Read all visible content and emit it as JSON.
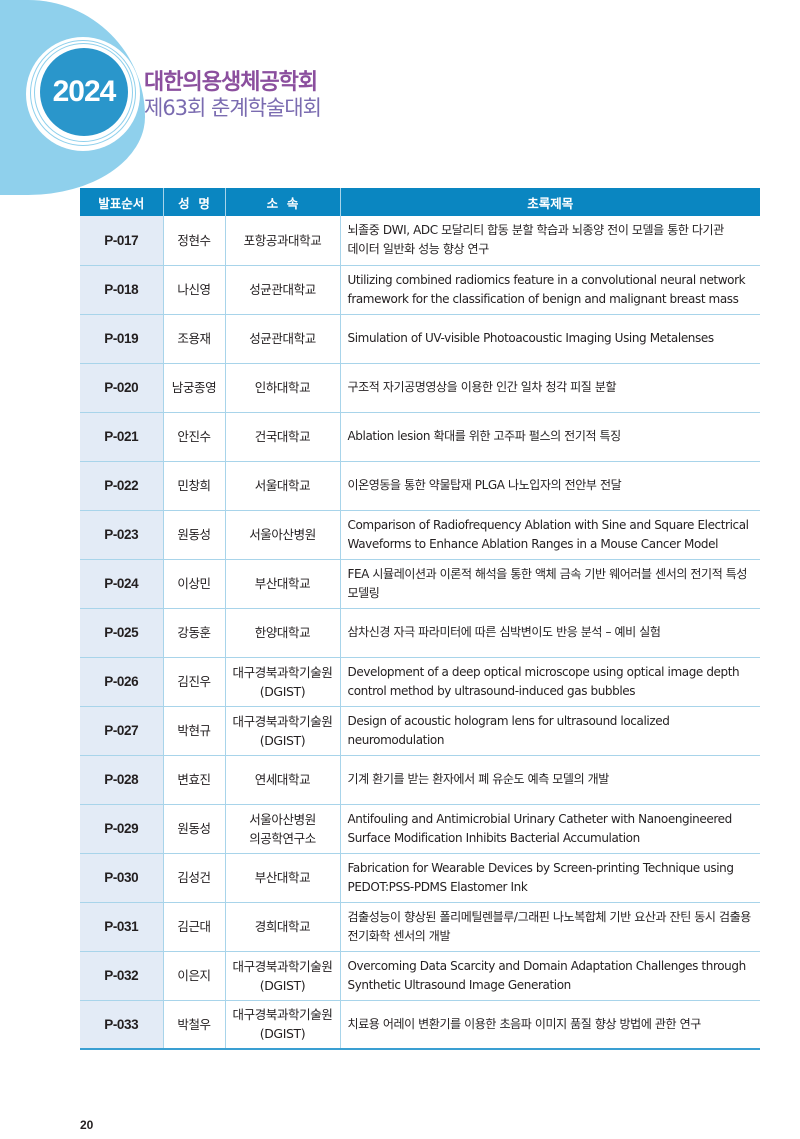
{
  "header": {
    "year": "2024",
    "society": "대한의용생체공학회",
    "event": "제63회 춘계학술대회"
  },
  "colors": {
    "header_bg": "#0a86c1",
    "accent": "#2a96cb",
    "first_col_bg": "#e3ebf6",
    "title_purple": "#8b4f9e"
  },
  "table": {
    "columns": [
      "발표순서",
      "성  명",
      "소  속",
      "초록제목"
    ],
    "rows": [
      [
        "P-017",
        "정현수",
        "포항공과대학교",
        "뇌졸중 DWI, ADC 모달리티 합동 분할 학습과 뇌종양 전이 모델을 통한 다기관 데이터 일반화 성능 향상 연구"
      ],
      [
        "P-018",
        "나신영",
        "성균관대학교",
        "Utilizing combined radiomics feature in a convolutional neural network framework for the classification of benign and malignant breast mass"
      ],
      [
        "P-019",
        "조용재",
        "성균관대학교",
        "Simulation of UV-visible Photoacoustic Imaging Using Metalenses"
      ],
      [
        "P-020",
        "남궁종영",
        "인하대학교",
        "구조적 자기공명영상을 이용한 인간 일차 청각 피질 분할"
      ],
      [
        "P-021",
        "안진수",
        "건국대학교",
        "Ablation lesion 확대를 위한 고주파 펄스의 전기적 특징"
      ],
      [
        "P-022",
        "민창희",
        "서울대학교",
        "이온영동을 통한 약물탑재 PLGA 나노입자의 전안부 전달"
      ],
      [
        "P-023",
        "원동성",
        "서울아산병원",
        "Comparison of Radiofrequency Ablation with Sine and Square Electrical Waveforms to Enhance Ablation Ranges in a Mouse Cancer Model"
      ],
      [
        "P-024",
        "이상민",
        "부산대학교",
        "FEA 시뮬레이션과 이론적 해석을 통한 액체 금속 기반 웨어러블 센서의 전기적 특성 모델링"
      ],
      [
        "P-025",
        "강동훈",
        "한양대학교",
        "삼차신경 자극 파라미터에 따른 심박변이도 반응 분석 – 예비 실험"
      ],
      [
        "P-026",
        "김진우",
        "대구경북과학기술원 (DGIST)",
        "Development of a deep optical microscope using optical image depth control method by ultrasound-induced gas bubbles"
      ],
      [
        "P-027",
        "박현규",
        "대구경북과학기술원 (DGIST)",
        "Design of acoustic hologram lens for ultrasound localized neuromodulation"
      ],
      [
        "P-028",
        "변효진",
        "연세대학교",
        "기계 환기를 받는 환자에서 폐 유순도 예측 모델의 개발"
      ],
      [
        "P-029",
        "원동성",
        "서울아산병원 의공학연구소",
        "Antifouling and Antimicrobial Urinary Catheter with Nanoengineered Surface Modification Inhibits Bacterial Accumulation"
      ],
      [
        "P-030",
        "김성건",
        "부산대학교",
        "Fabrication for Wearable Devices by Screen-printing Technique using PEDOT:PSS-PDMS Elastomer Ink"
      ],
      [
        "P-031",
        "김근대",
        "경희대학교",
        "검출성능이 향상된 폴리메틸렌블루/그래핀 나노복합체 기반 요산과 잔틴 동시 검출용 전기화학 센서의 개발"
      ],
      [
        "P-032",
        "이은지",
        "대구경북과학기술원 (DGIST)",
        "Overcoming Data Scarcity and Domain Adaptation Challenges through Synthetic Ultrasound Image Generation"
      ],
      [
        "P-033",
        "박철우",
        "대구경북과학기술원 (DGIST)",
        "치료용 어레이 변환기를 이용한 초음파 이미지 품질 향상 방법에 관한 연구"
      ]
    ]
  },
  "footer": {
    "page_number": "20"
  }
}
